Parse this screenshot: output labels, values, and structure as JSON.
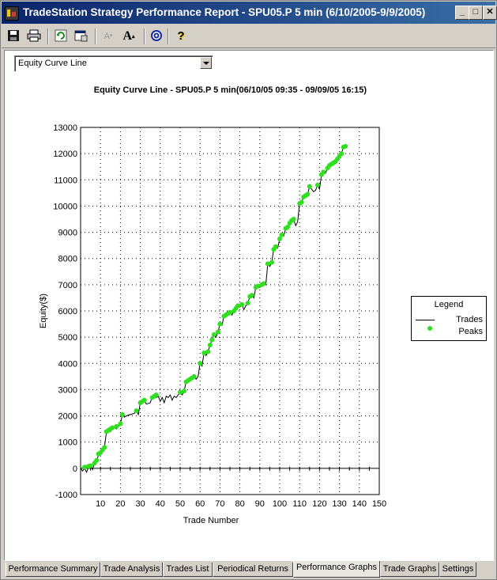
{
  "window": {
    "title": "TradeStation Strategy Performance Report - SPU05.P 5 min (6/10/2005-9/9/2005)",
    "controls": [
      "_",
      "□",
      "✕"
    ]
  },
  "toolbar": {
    "icons": [
      "save-icon",
      "print-icon",
      "refresh-icon",
      "properties-icon",
      "font-decrease-icon",
      "font-increase-icon",
      "target-icon",
      "help-icon"
    ]
  },
  "view_selector": {
    "selected": "Equity Curve Line"
  },
  "chart_data": {
    "type": "line",
    "title": "Equity Curve Line - SPU05.P 5 min(06/10/05 09:35 - 09/09/05 16:15)",
    "xlabel": "Trade Number",
    "ylabel": "Equity($)",
    "xlim": [
      0,
      150
    ],
    "ylim": [
      -1000,
      13000
    ],
    "x_ticks": [
      10,
      20,
      30,
      40,
      50,
      60,
      70,
      80,
      90,
      100,
      110,
      120,
      130,
      140,
      150
    ],
    "y_ticks": [
      -1000,
      0,
      1000,
      2000,
      3000,
      4000,
      5000,
      6000,
      7000,
      8000,
      9000,
      10000,
      11000,
      12000,
      13000
    ],
    "grid": true,
    "legend_position": "right",
    "series": [
      {
        "name": "Trades",
        "style": "line",
        "color": "#000000",
        "points": [
          [
            0,
            0
          ],
          [
            1,
            -100
          ],
          [
            2,
            0
          ],
          [
            3,
            -150
          ],
          [
            4,
            50
          ],
          [
            5,
            100
          ],
          [
            6,
            -50
          ],
          [
            7,
            200
          ],
          [
            8,
            300
          ],
          [
            9,
            500
          ],
          [
            10,
            600
          ],
          [
            11,
            700
          ],
          [
            12,
            800
          ],
          [
            13,
            1400
          ],
          [
            14,
            1450
          ],
          [
            15,
            1400
          ],
          [
            16,
            1500
          ],
          [
            17,
            1550
          ],
          [
            18,
            1500
          ],
          [
            19,
            1600
          ],
          [
            20,
            1700
          ],
          [
            21,
            2050
          ],
          [
            22,
            1950
          ],
          [
            23,
            2000
          ],
          [
            25,
            2050
          ],
          [
            27,
            2100
          ],
          [
            28,
            2200
          ],
          [
            29,
            2050
          ],
          [
            30,
            2500
          ],
          [
            31,
            2550
          ],
          [
            32,
            2600
          ],
          [
            33,
            2450
          ],
          [
            35,
            2500
          ],
          [
            36,
            2750
          ],
          [
            37,
            2800
          ],
          [
            38,
            2700
          ],
          [
            39,
            2750
          ],
          [
            40,
            2550
          ],
          [
            41,
            2700
          ],
          [
            42,
            2500
          ],
          [
            43,
            2750
          ],
          [
            44,
            2700
          ],
          [
            45,
            2800
          ],
          [
            46,
            2600
          ],
          [
            47,
            2750
          ],
          [
            48,
            2700
          ],
          [
            50,
            2900
          ],
          [
            51,
            2800
          ],
          [
            52,
            2950
          ],
          [
            53,
            3300
          ],
          [
            54,
            3350
          ],
          [
            55,
            3400
          ],
          [
            56,
            3450
          ],
          [
            57,
            3500
          ],
          [
            58,
            3400
          ],
          [
            59,
            3500
          ],
          [
            60,
            4000
          ],
          [
            61,
            3900
          ],
          [
            62,
            4400
          ],
          [
            63,
            4300
          ],
          [
            64,
            4450
          ],
          [
            65,
            4700
          ],
          [
            66,
            4900
          ],
          [
            67,
            5100
          ],
          [
            68,
            5000
          ],
          [
            69,
            5200
          ],
          [
            70,
            5500
          ],
          [
            71,
            5450
          ],
          [
            72,
            5800
          ],
          [
            73,
            5850
          ],
          [
            74,
            5900
          ],
          [
            75,
            5950
          ],
          [
            76,
            5850
          ],
          [
            77,
            6000
          ],
          [
            78,
            6100
          ],
          [
            79,
            6200
          ],
          [
            80,
            6150
          ],
          [
            81,
            6250
          ],
          [
            82,
            6050
          ],
          [
            83,
            6200
          ],
          [
            84,
            6300
          ],
          [
            85,
            6550
          ],
          [
            86,
            6600
          ],
          [
            87,
            6500
          ],
          [
            88,
            6900
          ],
          [
            89,
            6950
          ],
          [
            90,
            6900
          ],
          [
            91,
            7000
          ],
          [
            92,
            7050
          ],
          [
            93,
            7000
          ],
          [
            94,
            7800
          ],
          [
            95,
            7700
          ],
          [
            96,
            7850
          ],
          [
            97,
            8350
          ],
          [
            98,
            8450
          ],
          [
            99,
            8400
          ],
          [
            100,
            8750
          ],
          [
            101,
            8900
          ],
          [
            102,
            8850
          ],
          [
            103,
            9150
          ],
          [
            104,
            9200
          ],
          [
            105,
            9350
          ],
          [
            106,
            9450
          ],
          [
            107,
            9500
          ],
          [
            108,
            9250
          ],
          [
            109,
            9400
          ],
          [
            110,
            10100
          ],
          [
            111,
            10150
          ],
          [
            112,
            10350
          ],
          [
            113,
            10400
          ],
          [
            114,
            10450
          ],
          [
            115,
            10750
          ],
          [
            116,
            10650
          ],
          [
            117,
            10550
          ],
          [
            118,
            10600
          ],
          [
            119,
            10800
          ],
          [
            120,
            10650
          ],
          [
            121,
            11200
          ],
          [
            122,
            11300
          ],
          [
            123,
            11250
          ],
          [
            124,
            11450
          ],
          [
            125,
            11550
          ],
          [
            126,
            11600
          ],
          [
            127,
            11650
          ],
          [
            128,
            11700
          ],
          [
            129,
            11800
          ],
          [
            130,
            11900
          ],
          [
            131,
            12000
          ],
          [
            132,
            12250
          ],
          [
            133,
            12280
          ]
        ]
      },
      {
        "name": "Peaks",
        "style": "marker",
        "color": "#30e020",
        "points": [
          [
            2,
            50
          ],
          [
            4,
            80
          ],
          [
            5,
            100
          ],
          [
            7,
            200
          ],
          [
            8,
            300
          ],
          [
            9,
            550
          ],
          [
            10,
            600
          ],
          [
            11,
            700
          ],
          [
            12,
            800
          ],
          [
            13,
            1400
          ],
          [
            14,
            1450
          ],
          [
            15,
            1500
          ],
          [
            16,
            1550
          ],
          [
            18,
            1600
          ],
          [
            20,
            1700
          ],
          [
            21,
            2050
          ],
          [
            28,
            2200
          ],
          [
            30,
            2500
          ],
          [
            31,
            2550
          ],
          [
            32,
            2600
          ],
          [
            36,
            2700
          ],
          [
            37,
            2750
          ],
          [
            38,
            2800
          ],
          [
            50,
            2900
          ],
          [
            52,
            2950
          ],
          [
            53,
            3300
          ],
          [
            54,
            3350
          ],
          [
            55,
            3400
          ],
          [
            56,
            3450
          ],
          [
            57,
            3500
          ],
          [
            60,
            4000
          ],
          [
            62,
            4400
          ],
          [
            64,
            4450
          ],
          [
            65,
            4700
          ],
          [
            66,
            4900
          ],
          [
            67,
            5100
          ],
          [
            69,
            5200
          ],
          [
            70,
            5500
          ],
          [
            72,
            5800
          ],
          [
            73,
            5850
          ],
          [
            74,
            5900
          ],
          [
            75,
            5950
          ],
          [
            77,
            6000
          ],
          [
            78,
            6100
          ],
          [
            79,
            6200
          ],
          [
            81,
            6250
          ],
          [
            84,
            6300
          ],
          [
            85,
            6550
          ],
          [
            86,
            6600
          ],
          [
            88,
            6900
          ],
          [
            89,
            6950
          ],
          [
            91,
            7000
          ],
          [
            92,
            7050
          ],
          [
            94,
            7800
          ],
          [
            96,
            7850
          ],
          [
            97,
            8350
          ],
          [
            98,
            8450
          ],
          [
            100,
            8750
          ],
          [
            101,
            8900
          ],
          [
            103,
            9150
          ],
          [
            104,
            9200
          ],
          [
            105,
            9350
          ],
          [
            106,
            9450
          ],
          [
            107,
            9500
          ],
          [
            110,
            10100
          ],
          [
            111,
            10150
          ],
          [
            112,
            10350
          ],
          [
            113,
            10400
          ],
          [
            114,
            10450
          ],
          [
            115,
            10750
          ],
          [
            119,
            10800
          ],
          [
            121,
            11200
          ],
          [
            122,
            11300
          ],
          [
            124,
            11450
          ],
          [
            125,
            11550
          ],
          [
            126,
            11600
          ],
          [
            127,
            11650
          ],
          [
            128,
            11700
          ],
          [
            129,
            11800
          ],
          [
            130,
            11900
          ],
          [
            131,
            12000
          ],
          [
            132,
            12250
          ],
          [
            133,
            12280
          ]
        ]
      }
    ]
  },
  "legend": {
    "title": "Legend",
    "items": [
      "Trades",
      "Peaks"
    ]
  },
  "tabs": [
    {
      "label": "Performance Summary",
      "active": false
    },
    {
      "label": "Trade Analysis",
      "active": false
    },
    {
      "label": "Trades List",
      "active": false
    },
    {
      "label": "Periodical Returns",
      "active": false
    },
    {
      "label": "Performance Graphs",
      "active": true
    },
    {
      "label": "Trade Graphs",
      "active": false
    },
    {
      "label": "Settings",
      "active": false
    }
  ]
}
